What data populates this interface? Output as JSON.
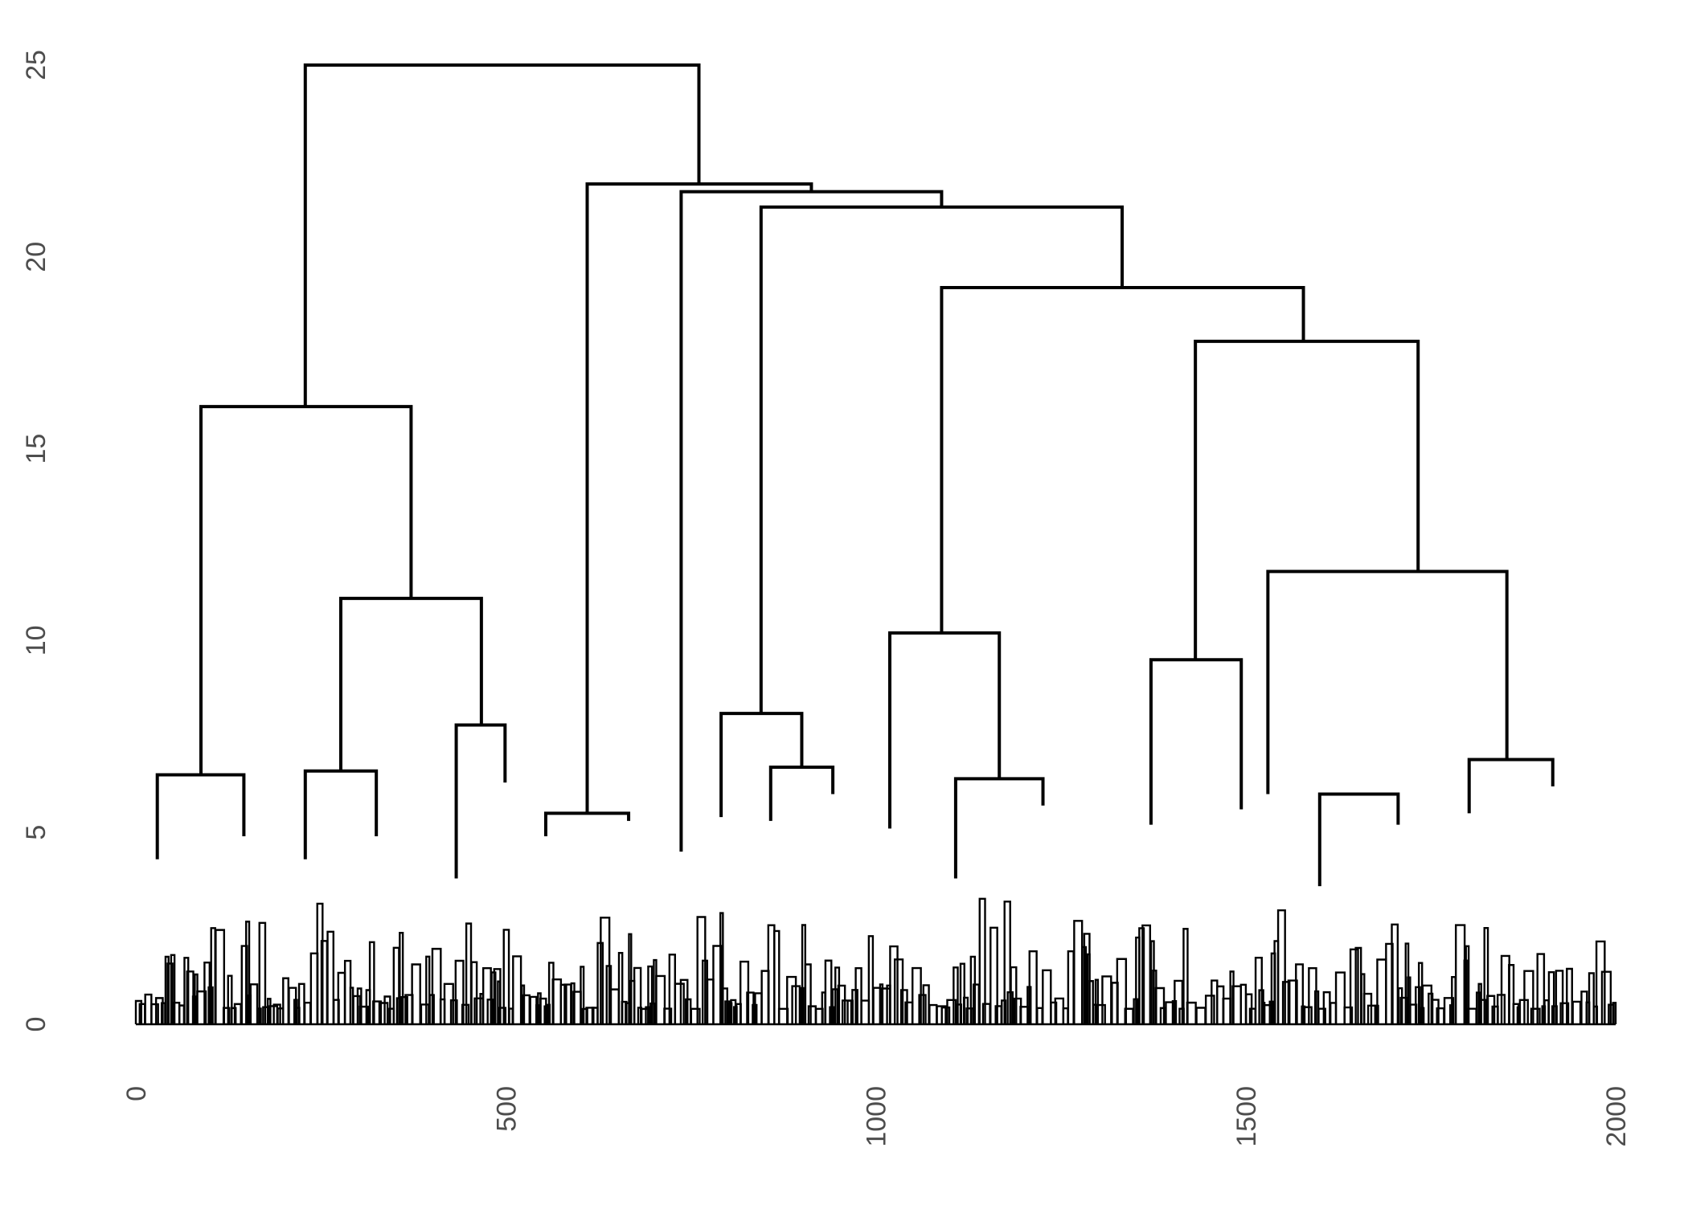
{
  "chart_data": {
    "type": "dendrogram",
    "title": "",
    "xlabel": "",
    "ylabel": "",
    "xlim": [
      0,
      2000
    ],
    "ylim": [
      0,
      25
    ],
    "x_ticks": [
      "0",
      "500",
      "1000",
      "1500",
      "2000"
    ],
    "y_ticks": [
      "0",
      "5",
      "10",
      "15",
      "20",
      "25"
    ],
    "grid": false,
    "line_color": "#000000",
    "merges": [
      {
        "x": [
          229,
          761
        ],
        "height": 25.0,
        "floor": [
          16.1,
          21.9
        ]
      },
      {
        "x": [
          88,
          372
        ],
        "height": 16.1,
        "floor": [
          6.5,
          11.1
        ]
      },
      {
        "x": [
          29,
          146
        ],
        "height": 6.5,
        "floor": [
          4.3,
          4.9
        ]
      },
      {
        "x": [
          277,
          467
        ],
        "height": 11.1,
        "floor": [
          6.6,
          7.8
        ]
      },
      {
        "x": [
          229,
          325
        ],
        "height": 6.6,
        "floor": [
          4.3,
          4.9
        ]
      },
      {
        "x": [
          433,
          499
        ],
        "height": 7.8,
        "floor": [
          3.8,
          6.3
        ]
      },
      {
        "x": [
          610,
          913
        ],
        "height": 21.9,
        "floor": [
          5.5,
          21.7
        ]
      },
      {
        "x": [
          554,
          666
        ],
        "height": 5.5,
        "floor": [
          4.9,
          5.3
        ]
      },
      {
        "x": [
          737,
          1089
        ],
        "height": 21.7,
        "floor": [
          4.5,
          21.3
        ]
      },
      {
        "x": [
          845,
          1333
        ],
        "height": 21.3,
        "floor": [
          8.1,
          19.2
        ]
      },
      {
        "x": [
          791,
          900
        ],
        "height": 8.1,
        "floor": [
          5.4,
          6.7
        ]
      },
      {
        "x": [
          858,
          942
        ],
        "height": 6.7,
        "floor": [
          5.3,
          6.0
        ]
      },
      {
        "x": [
          1089,
          1578
        ],
        "height": 19.2,
        "floor": [
          10.2,
          17.8
        ]
      },
      {
        "x": [
          1019,
          1167
        ],
        "height": 10.2,
        "floor": [
          5.1,
          6.4
        ]
      },
      {
        "x": [
          1108,
          1226
        ],
        "height": 6.4,
        "floor": [
          3.8,
          5.7
        ]
      },
      {
        "x": [
          1432,
          1733
        ],
        "height": 17.8,
        "floor": [
          9.5,
          11.8
        ]
      },
      {
        "x": [
          1372,
          1494
        ],
        "height": 9.5,
        "floor": [
          5.2,
          5.6
        ]
      },
      {
        "x": [
          1530,
          1853
        ],
        "height": 11.8,
        "floor": [
          6.0,
          6.9
        ]
      },
      {
        "x": [
          1600,
          1706
        ],
        "height": 6.0,
        "floor": [
          3.6,
          5.2
        ]
      },
      {
        "x": [
          1802,
          1915
        ],
        "height": 6.9,
        "floor": [
          5.5,
          6.2
        ]
      }
    ]
  }
}
